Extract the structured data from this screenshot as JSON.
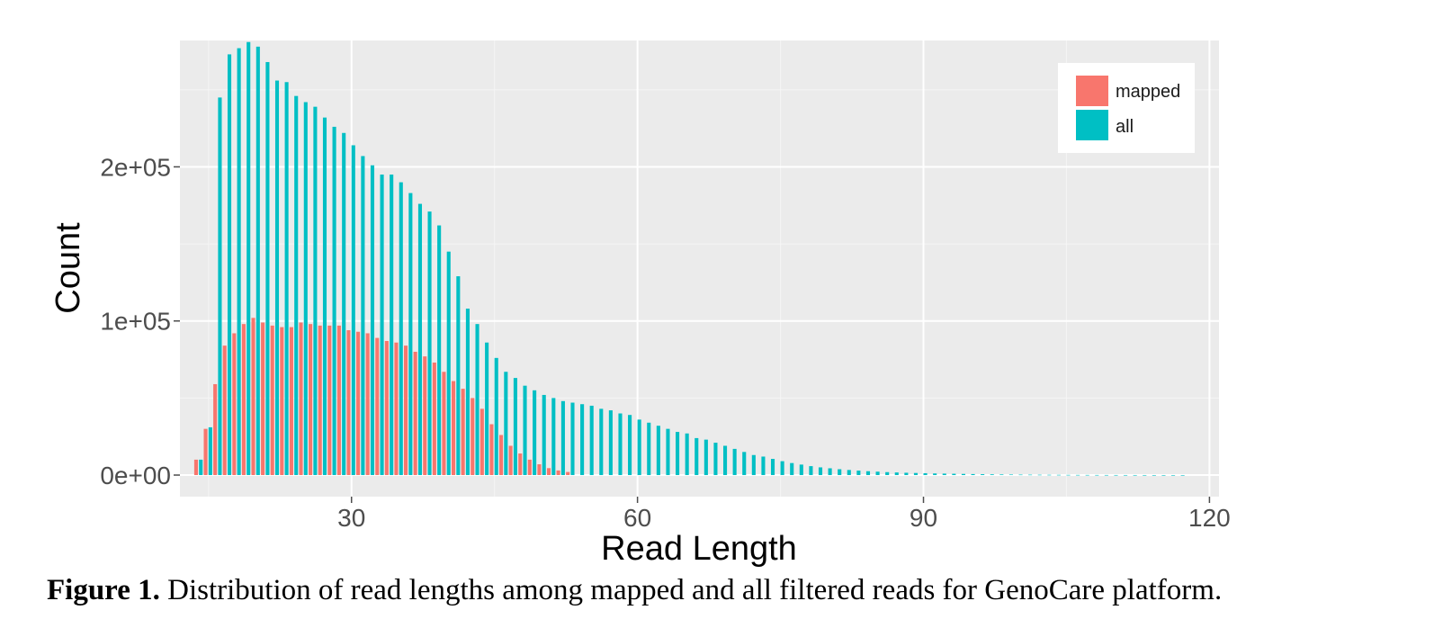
{
  "chart_data": {
    "type": "bar",
    "xlabel": "Read Length",
    "ylabel": "Count",
    "xlim": [
      12,
      121
    ],
    "ylim": [
      -14000,
      282000
    ],
    "x_ticks": [
      30,
      60,
      90,
      120
    ],
    "x_tick_labels": [
      "30",
      "60",
      "90",
      "120"
    ],
    "y_ticks": [
      0,
      100000,
      200000
    ],
    "y_tick_labels": [
      "0e+00",
      "1e+05",
      "2e+05"
    ],
    "grid": true,
    "legend_position": "top-right",
    "series": [
      {
        "name": "mapped",
        "color": "#F8766D",
        "x": [
          14,
          15,
          16,
          17,
          18,
          19,
          20,
          21,
          22,
          23,
          24,
          25,
          26,
          27,
          28,
          29,
          30,
          31,
          32,
          33,
          34,
          35,
          36,
          37,
          38,
          39,
          40,
          41,
          42,
          43,
          44,
          45,
          46,
          47,
          48,
          49,
          50,
          51,
          52,
          53
        ],
        "values": [
          10000,
          30000,
          59000,
          84000,
          92000,
          98000,
          102000,
          99000,
          97000,
          96000,
          96000,
          99000,
          98000,
          97000,
          97000,
          97000,
          94000,
          93000,
          92000,
          89000,
          87000,
          86000,
          84000,
          80000,
          77000,
          73000,
          67000,
          61000,
          56000,
          50000,
          43000,
          33000,
          26000,
          19000,
          14000,
          10000,
          7000,
          4500,
          3000,
          2000
        ]
      },
      {
        "name": "all",
        "color": "#00BFC4",
        "x": [
          14,
          15,
          16,
          17,
          18,
          19,
          20,
          21,
          22,
          23,
          24,
          25,
          26,
          27,
          28,
          29,
          30,
          31,
          32,
          33,
          34,
          35,
          36,
          37,
          38,
          39,
          40,
          41,
          42,
          43,
          44,
          45,
          46,
          47,
          48,
          49,
          50,
          51,
          52,
          53,
          54,
          55,
          56,
          57,
          58,
          59,
          60,
          61,
          62,
          63,
          64,
          65,
          66,
          67,
          68,
          69,
          70,
          71,
          72,
          73,
          74,
          75,
          76,
          77,
          78,
          79,
          80,
          81,
          82,
          83,
          84,
          85,
          86,
          87,
          88,
          89,
          90,
          91,
          92,
          93,
          94,
          95,
          96,
          97,
          98,
          99,
          100,
          101,
          102,
          103,
          104,
          105,
          106,
          107,
          108,
          109,
          110,
          111,
          112,
          113,
          114,
          115,
          116,
          117
        ],
        "values": [
          10000,
          31000,
          245000,
          273000,
          277000,
          281000,
          278000,
          268000,
          256000,
          255000,
          246000,
          242000,
          239000,
          232000,
          226000,
          222000,
          214000,
          207000,
          201000,
          195000,
          195000,
          190000,
          183000,
          176000,
          171000,
          162000,
          145000,
          129000,
          108000,
          98000,
          86000,
          76000,
          67000,
          63000,
          58000,
          55000,
          52000,
          50000,
          48000,
          47000,
          46000,
          45000,
          43000,
          42000,
          40000,
          39000,
          36000,
          34000,
          32000,
          30000,
          28000,
          27000,
          24000,
          23000,
          21000,
          19000,
          17000,
          15000,
          13000,
          12000,
          10500,
          9000,
          7800,
          6800,
          5800,
          5000,
          4400,
          3800,
          3300,
          2900,
          2500,
          2200,
          1900,
          1700,
          1500,
          1350,
          1200,
          1050,
          950,
          850,
          750,
          650,
          560,
          480,
          410,
          350,
          300,
          255,
          215,
          180,
          150,
          125,
          100,
          80,
          65,
          50,
          40,
          30,
          22,
          16,
          11,
          8,
          5,
          3
        ]
      }
    ]
  },
  "caption": {
    "label": "Figure 1.",
    "text": " Distribution of read lengths among mapped and all filtered reads for GenoCare platform."
  }
}
